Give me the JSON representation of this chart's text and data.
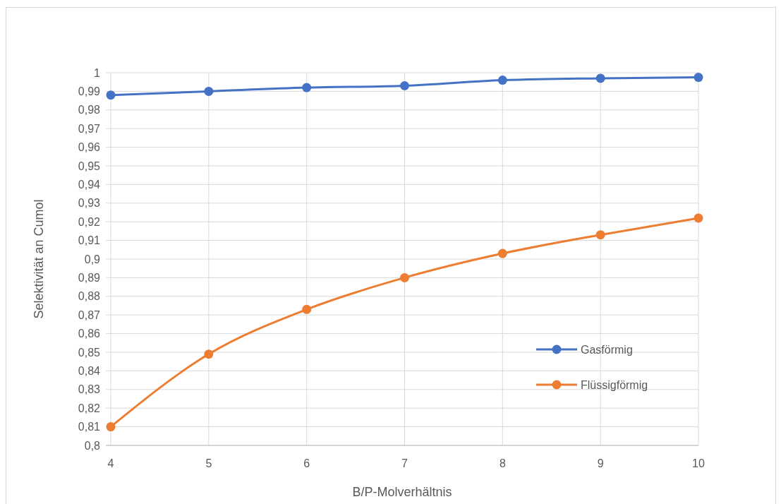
{
  "chart_data": {
    "type": "line",
    "xlabel": "B/P-Molverhältnis",
    "ylabel": "Selektivität an Cumol",
    "x": [
      4,
      5,
      6,
      7,
      8,
      9,
      10
    ],
    "series": [
      {
        "name": "Gasförmig",
        "color": "#4472c4",
        "values": [
          0.988,
          0.99,
          0.992,
          0.993,
          0.996,
          0.997,
          0.9975
        ]
      },
      {
        "name": "Flüssigförmig",
        "color": "#ed7d31",
        "values": [
          0.81,
          0.849,
          0.873,
          0.89,
          0.903,
          0.913,
          0.922
        ]
      }
    ],
    "xlim": [
      4,
      10
    ],
    "xticks": [
      4,
      5,
      6,
      7,
      8,
      9,
      10
    ],
    "ylim": [
      0.8,
      1
    ],
    "yticks": [
      {
        "value": 0.8,
        "label": "0,8"
      },
      {
        "value": 0.81,
        "label": "0,81"
      },
      {
        "value": 0.82,
        "label": "0,82"
      },
      {
        "value": 0.83,
        "label": "0,83"
      },
      {
        "value": 0.84,
        "label": "0,84"
      },
      {
        "value": 0.85,
        "label": "0,85"
      },
      {
        "value": 0.86,
        "label": "0,86"
      },
      {
        "value": 0.87,
        "label": "0,87"
      },
      {
        "value": 0.88,
        "label": "0,88"
      },
      {
        "value": 0.89,
        "label": "0,89"
      },
      {
        "value": 0.9,
        "label": "0,9"
      },
      {
        "value": 0.91,
        "label": "0,91"
      },
      {
        "value": 0.92,
        "label": "0,92"
      },
      {
        "value": 0.93,
        "label": "0,93"
      },
      {
        "value": 0.94,
        "label": "0,94"
      },
      {
        "value": 0.95,
        "label": "0,95"
      },
      {
        "value": 0.96,
        "label": "0,96"
      },
      {
        "value": 0.97,
        "label": "0,97"
      },
      {
        "value": 0.98,
        "label": "0,98"
      },
      {
        "value": 0.99,
        "label": "0,99"
      },
      {
        "value": 1,
        "label": "1"
      }
    ],
    "grid": true,
    "legend": "bottom right",
    "marker": "circle",
    "line_style": "solid"
  }
}
